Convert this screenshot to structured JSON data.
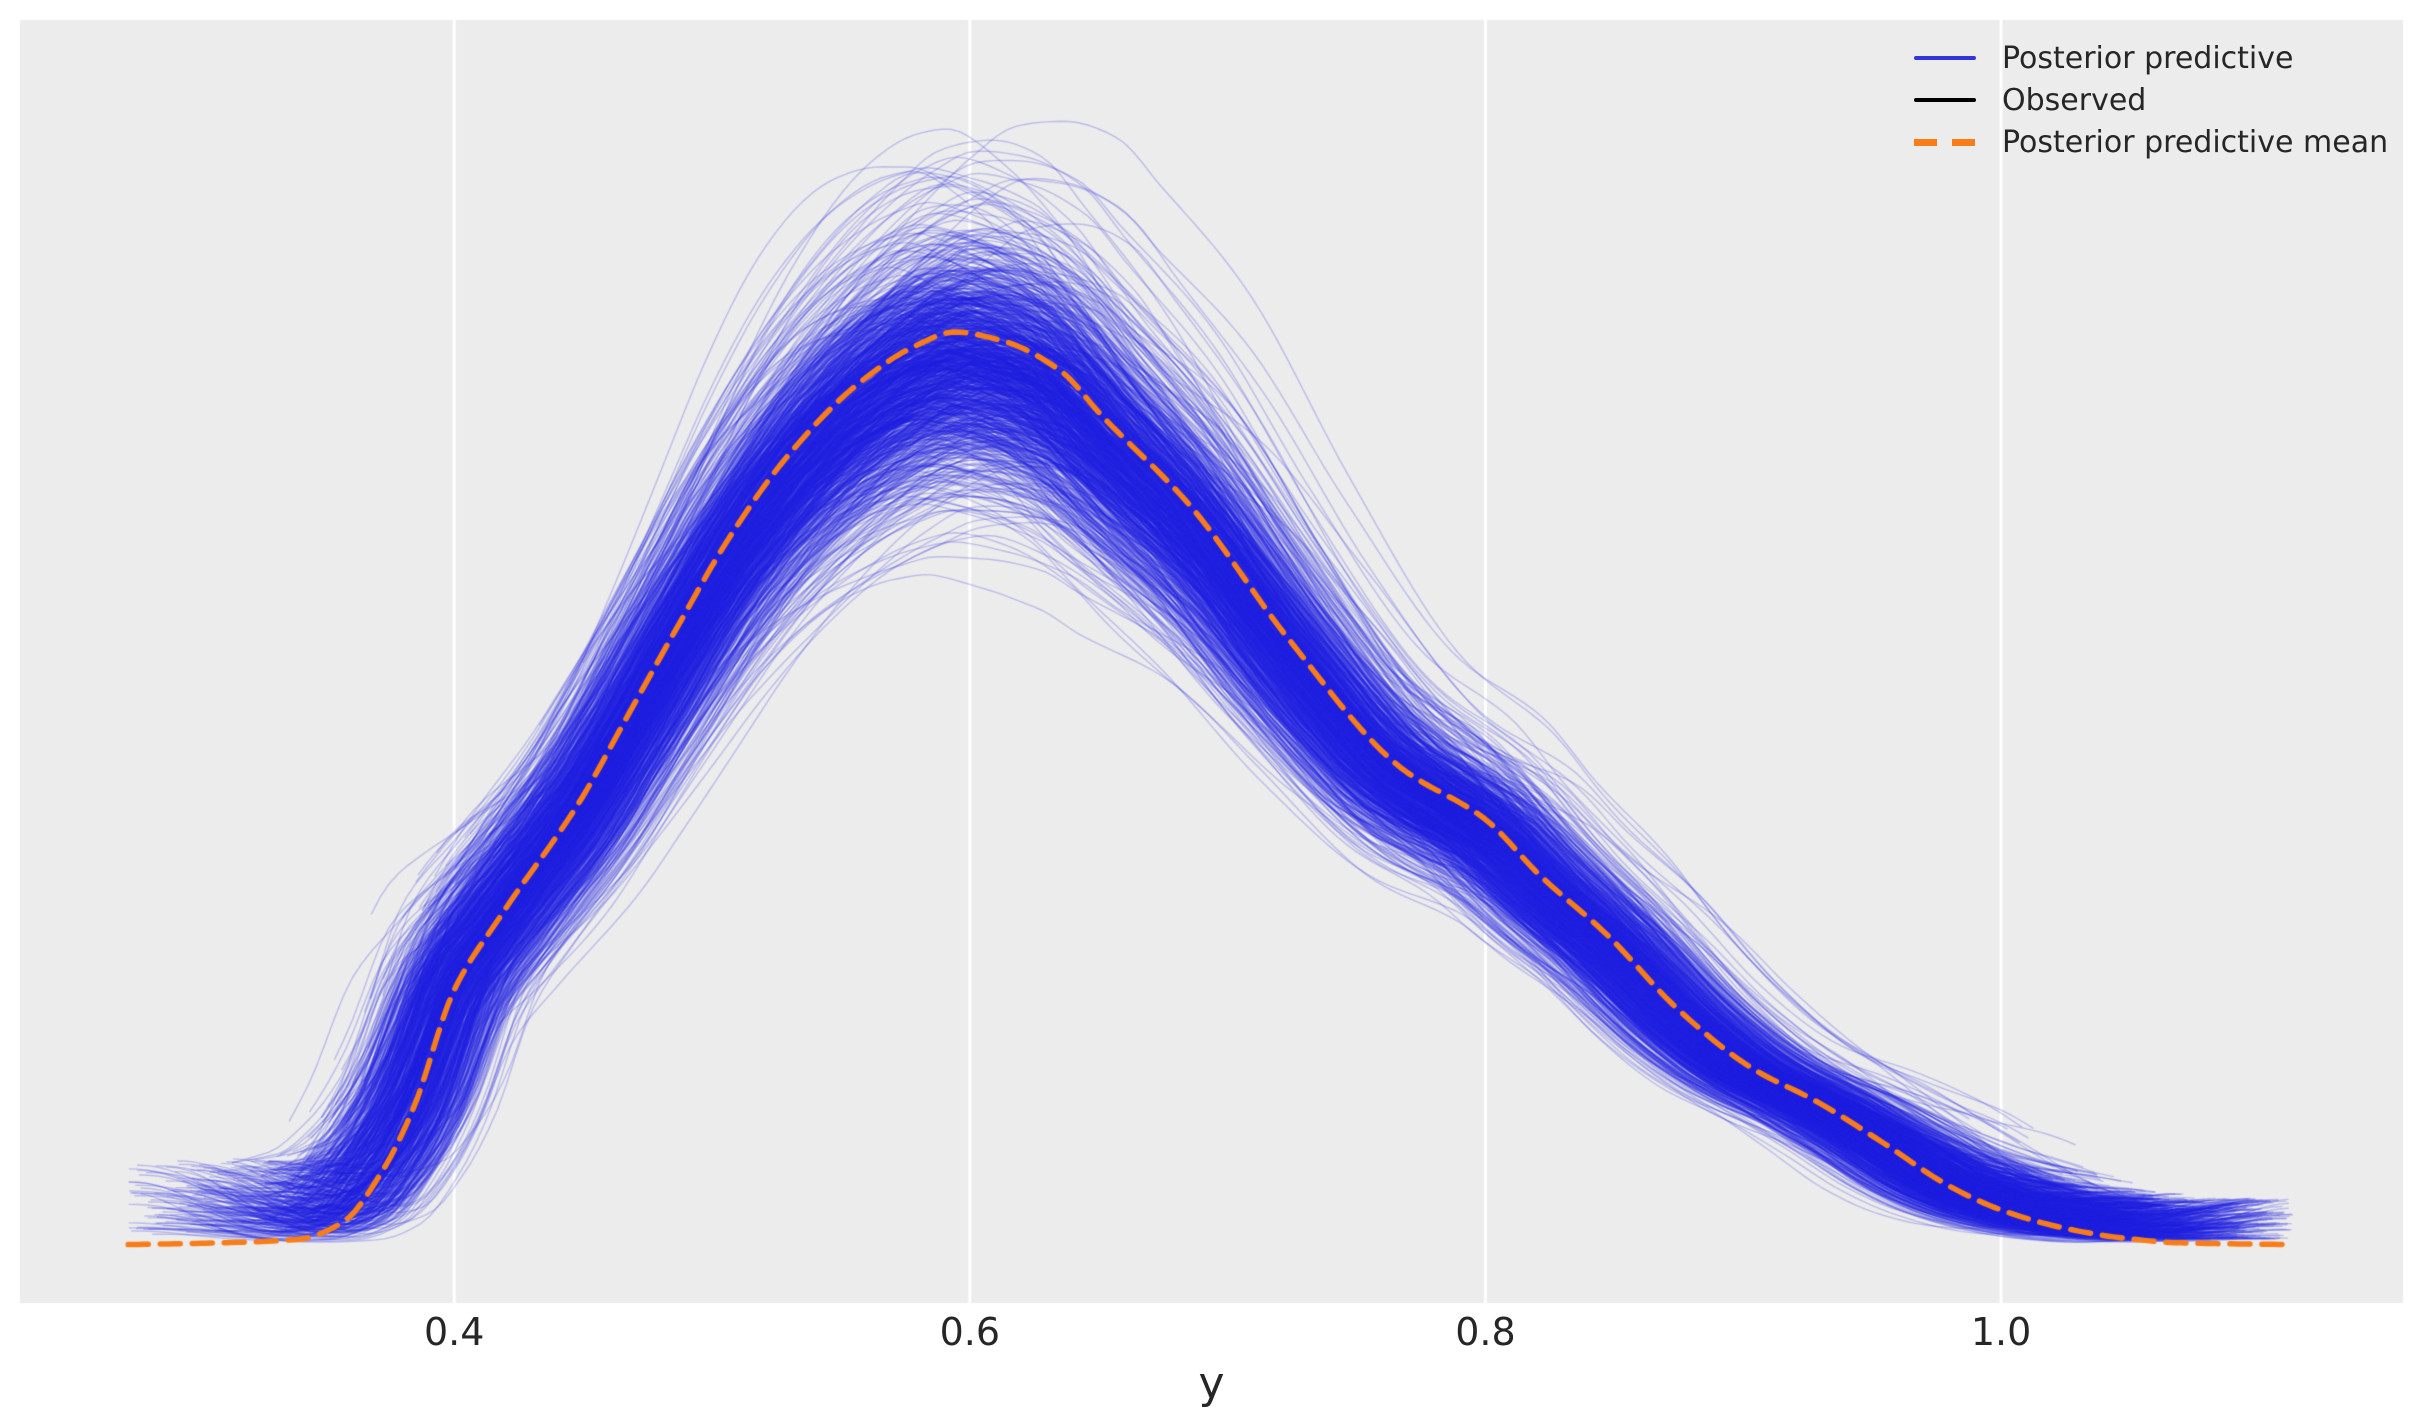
{
  "figure": {
    "xlabel": "y",
    "background_color": "#ffffff",
    "axes_background_color": "#ececec",
    "grid_color": "#ffffff",
    "tick_label_color": "#262626",
    "axis_label_color": "#262626"
  },
  "legend": {
    "position": "upper right",
    "items": [
      {
        "label": "Posterior predictive",
        "color": "#3434dd",
        "style": "solid"
      },
      {
        "label": "Observed",
        "color": "#000000",
        "style": "solid"
      },
      {
        "label": "Posterior predictive mean",
        "color": "#f87d19",
        "style": "dashed"
      }
    ]
  },
  "xticks": [
    {
      "value": 0.4,
      "label": "0.4"
    },
    {
      "value": 0.6,
      "label": "0.6"
    },
    {
      "value": 0.8,
      "label": "0.8"
    },
    {
      "value": 1.0,
      "label": "1.0"
    }
  ],
  "chart_data": {
    "type": "line",
    "subtype": "kde_posterior_predictive_check",
    "title": "",
    "xlabel": "y",
    "ylabel": "",
    "x_range": [
      0.2316,
      1.1559
    ],
    "y_range": [
      -0.064,
      1.342
    ],
    "x_ticks": [
      0.4,
      0.6,
      0.8,
      1.0
    ],
    "grid": "vertical-only",
    "legend_position": "upper right",
    "peak": {
      "x": 0.594,
      "density": 1.0
    },
    "series": [
      {
        "name": "Posterior predictive",
        "style": "ensemble",
        "color": "#2020e2",
        "alpha": 0.24,
        "line_width": 1.4,
        "n_draws": 1200,
        "amp_mean": 0.97,
        "amp_sigma": 0.055,
        "x_shift_sigma": 0.009,
        "x_scale_sigma": 0.03,
        "wiggle_amp_range": [
          0.015,
          0.045
        ],
        "wiggle_freq_range": [
          1.2,
          7.0
        ],
        "x_start": {
          "mean": 0.362,
          "sigma": 0.033,
          "min": 0.274,
          "max": 0.45
        },
        "x_end": {
          "mean": 1.048,
          "sigma": 0.026,
          "min": 0.99,
          "max": 1.114
        },
        "endpoint_lift_left": [
          0.01,
          0.09
        ],
        "endpoint_lift_right": [
          0.005,
          0.05
        ],
        "seed": 77777
      },
      {
        "name": "Observed",
        "style": "solid",
        "color": "#000000",
        "visible_in_plot": false
      },
      {
        "name": "Posterior predictive mean",
        "style": "dashed",
        "color": "#f87d19",
        "line_width": 5.5,
        "dash": [
          20,
          12
        ],
        "x": [
          0.2736,
          0.31,
          0.34,
          0.357,
          0.372,
          0.384,
          0.4,
          0.418,
          0.449,
          0.467,
          0.486,
          0.507,
          0.529,
          0.557,
          0.579,
          0.594,
          0.612,
          0.635,
          0.651,
          0.686,
          0.723,
          0.767,
          0.8,
          0.821,
          0.847,
          0.875,
          0.903,
          0.929,
          0.954,
          0.98,
          1.0,
          1.023,
          1.045,
          1.069,
          1.112
        ],
        "density": [
          0.0,
          0.002,
          0.006,
          0.025,
          0.08,
          0.148,
          0.279,
          0.36,
          0.487,
          0.578,
          0.674,
          0.776,
          0.863,
          0.944,
          0.985,
          1.0,
          0.991,
          0.958,
          0.909,
          0.808,
          0.666,
          0.523,
          0.466,
          0.405,
          0.34,
          0.257,
          0.194,
          0.156,
          0.112,
          0.064,
          0.038,
          0.019,
          0.008,
          0.002,
          0.0
        ]
      }
    ]
  }
}
